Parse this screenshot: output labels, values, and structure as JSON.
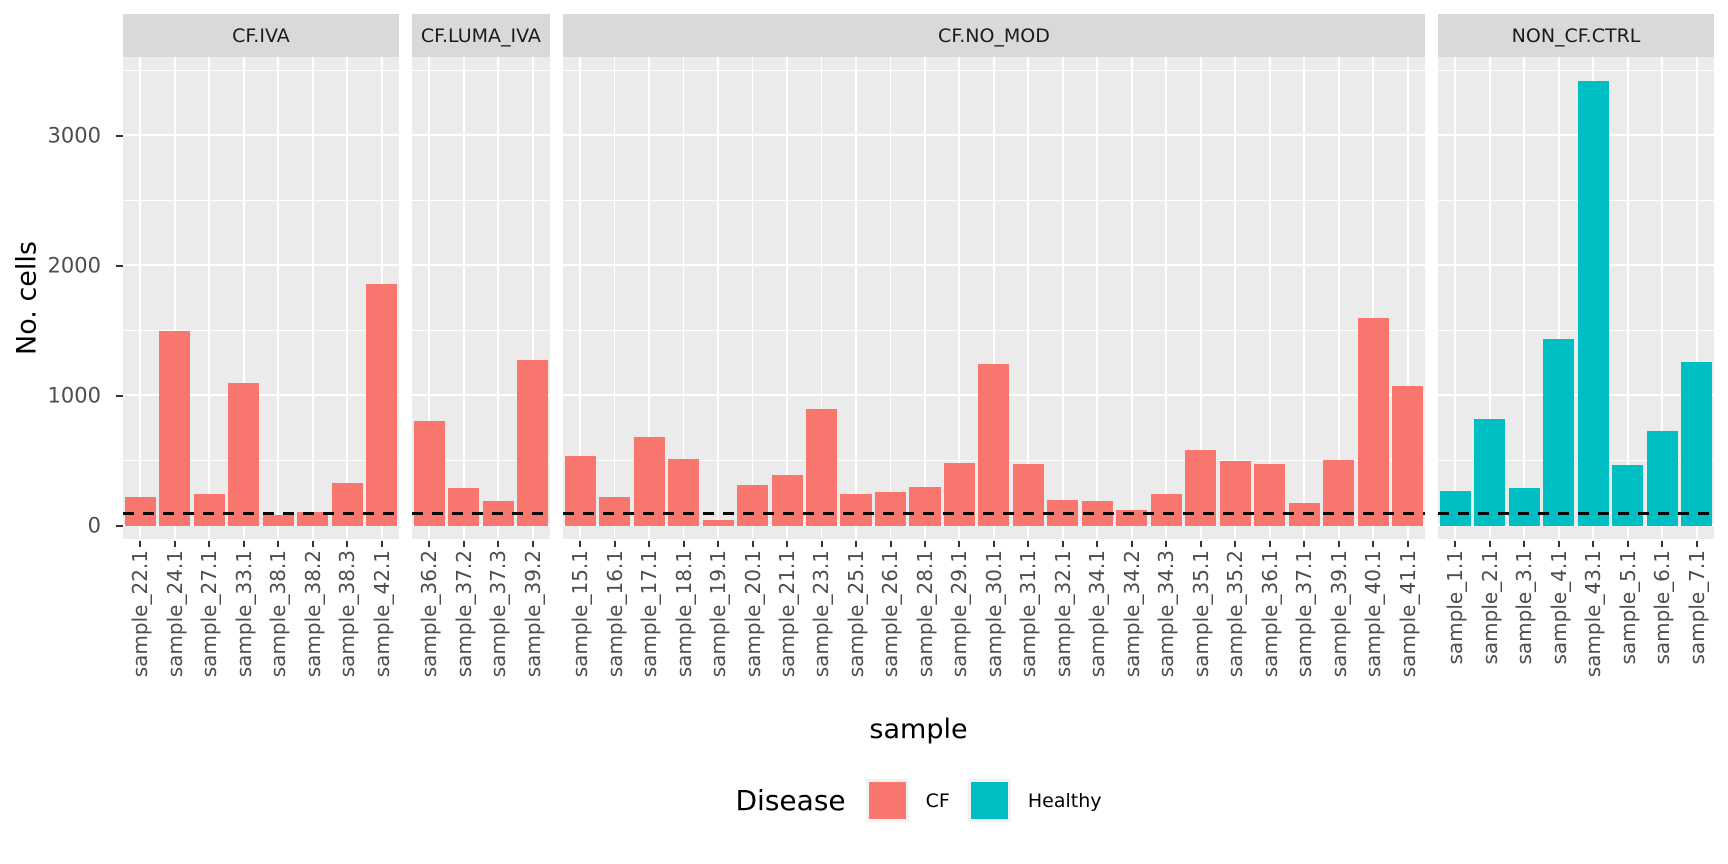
{
  "y_axis": {
    "title": "No. cells",
    "major_ticks": [
      0,
      1000,
      2000,
      3000
    ],
    "minor_ticks": [
      500,
      1500,
      2500,
      3500
    ]
  },
  "x_axis": {
    "title": "sample"
  },
  "legend": {
    "title": "Disease",
    "items": [
      {
        "label": "CF",
        "color": "#F8766D"
      },
      {
        "label": "Healthy",
        "color": "#00BFC4"
      }
    ]
  },
  "reference_line": {
    "value": 100,
    "style": "dashed",
    "color": "#0a0a0a"
  },
  "colors": {
    "panel_background": "#EBEBEB",
    "strip_background": "#D9D9D9",
    "gridline": "#FFFFFF",
    "axis_text": "#4D4D4D",
    "tick_mark": "#333333"
  },
  "chart_data": {
    "type": "bar",
    "title": "",
    "xlabel": "sample",
    "ylabel": "No. cells",
    "ylim": [
      0,
      3600
    ],
    "grid": true,
    "legend_position": "bottom",
    "facets": [
      {
        "label": "CF.IVA",
        "disease": "CF",
        "samples": [
          "sample_22.1",
          "sample_24.1",
          "sample_27.1",
          "sample_33.1",
          "sample_38.1",
          "sample_38.2",
          "sample_38.3",
          "sample_42.1"
        ],
        "values": [
          220,
          1500,
          250,
          1100,
          85,
          110,
          330,
          1865
        ]
      },
      {
        "label": "CF.LUMA_IVA",
        "disease": "CF",
        "samples": [
          "sample_36.2",
          "sample_37.2",
          "sample_37.3",
          "sample_39.2"
        ],
        "values": [
          810,
          290,
          195,
          1280
        ]
      },
      {
        "label": "CF.NO_MOD",
        "disease": "CF",
        "samples": [
          "sample_15.1",
          "sample_16.1",
          "sample_17.1",
          "sample_18.1",
          "sample_19.1",
          "sample_20.1",
          "sample_21.1",
          "sample_23.1",
          "sample_25.1",
          "sample_26.1",
          "sample_28.1",
          "sample_29.1",
          "sample_30.1",
          "sample_31.1",
          "sample_32.1",
          "sample_34.1",
          "sample_34.2",
          "sample_34.3",
          "sample_35.1",
          "sample_35.2",
          "sample_36.1",
          "sample_37.1",
          "sample_39.1",
          "sample_40.1",
          "sample_41.1"
        ],
        "values": [
          535,
          225,
          685,
          515,
          45,
          315,
          395,
          900,
          245,
          260,
          300,
          485,
          1250,
          480,
          200,
          195,
          125,
          250,
          585,
          500,
          480,
          180,
          510,
          1600,
          1080
        ]
      },
      {
        "label": "NON_CF.CTRL",
        "disease": "Healthy",
        "samples": [
          "sample_1.1",
          "sample_2.1",
          "sample_3.1",
          "sample_4.1",
          "sample_43.1",
          "sample_5.1",
          "sample_6.1",
          "sample_7.1"
        ],
        "values": [
          270,
          820,
          290,
          1440,
          3420,
          470,
          730,
          1260
        ]
      }
    ]
  }
}
